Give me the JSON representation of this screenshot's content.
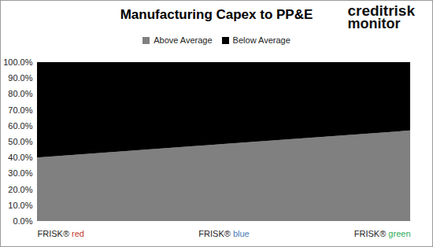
{
  "chart_data": {
    "type": "area",
    "stacked": true,
    "title": "Manufacturing Capex to PP&E",
    "annotations": [
      "creditrisk",
      "monitor"
    ],
    "categories": [
      "FRISK® red",
      "FRISK® blue",
      "FRISK® green"
    ],
    "series": [
      {
        "name": "Above Average",
        "color": "#808080",
        "values": [
          40,
          48.5,
          57
        ]
      },
      {
        "name": "Below Average",
        "color": "#000000",
        "values": [
          60,
          51.5,
          43
        ]
      }
    ],
    "ylim": [
      0,
      100
    ],
    "yticks": [
      {
        "value": 0,
        "label": "0.0%"
      },
      {
        "value": 10,
        "label": "10.0%"
      },
      {
        "value": 20,
        "label": "20.0%"
      },
      {
        "value": 30,
        "label": "30.0%"
      },
      {
        "value": 40,
        "label": "40.0%"
      },
      {
        "value": 50,
        "label": "50.0%"
      },
      {
        "value": 60,
        "label": "60.0%"
      },
      {
        "value": 70,
        "label": "70.0%"
      },
      {
        "value": 80,
        "label": "80.0%"
      },
      {
        "value": 90,
        "label": "90.0%"
      },
      {
        "value": 100,
        "label": "100.0%"
      }
    ],
    "legend": "top",
    "grid": false
  }
}
